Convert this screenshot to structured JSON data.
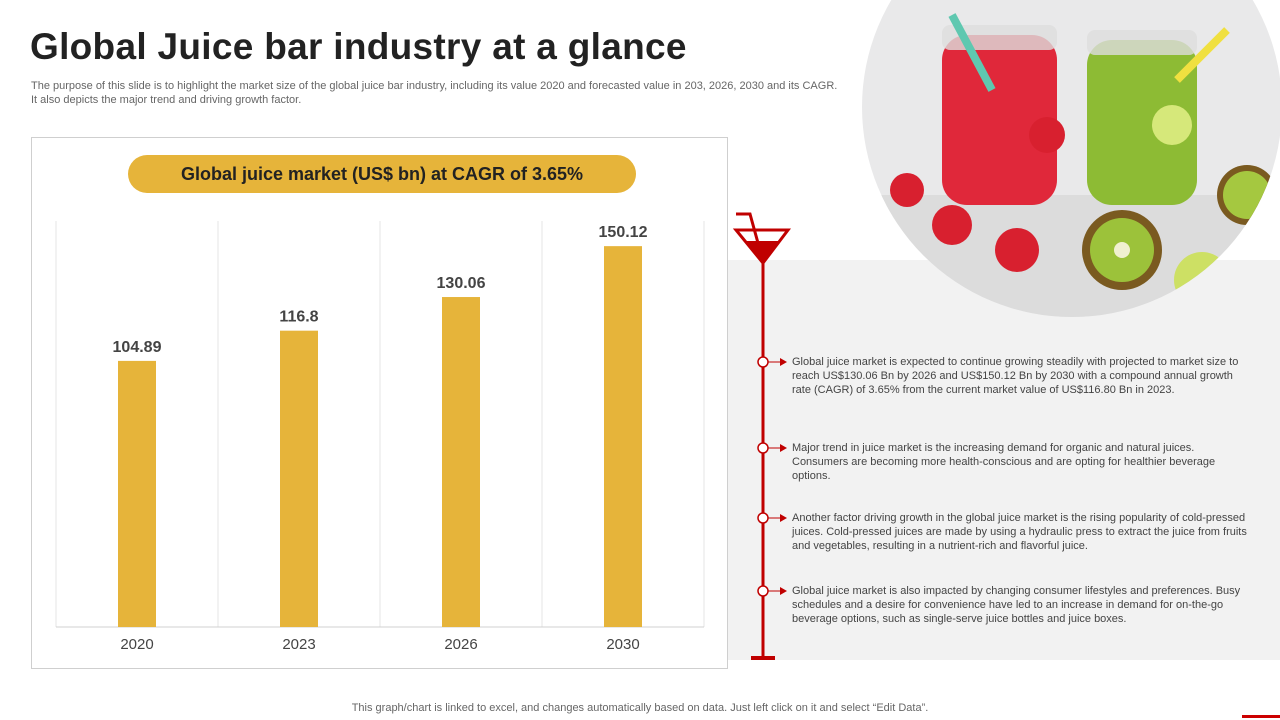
{
  "title": "Global Juice bar industry at a glance",
  "subtitle": "The purpose of this slide is to highlight the market size of the global juice bar industry, including its value 2020 and forecasted value in 203, 2026, 2030 and its CAGR. It also depicts the major trend and driving growth factor.",
  "chart_data": {
    "type": "bar",
    "title": "Global juice market (US$ bn) at CAGR of 3.65%",
    "categories": [
      "2020",
      "2023",
      "2026",
      "2030"
    ],
    "values": [
      104.89,
      116.8,
      130.06,
      150.12
    ],
    "data_labels": [
      "104.89",
      "116.8",
      "130.06",
      "150.12"
    ],
    "ylim": [
      0,
      160
    ],
    "grid": "vertical",
    "bar_color": "#e6b43a"
  },
  "timeline": {
    "accent": "#c00000",
    "items": [
      "Global juice market is expected to continue growing steadily with projected to market size to reach US$130.06 Bn by 2026 and US$150.12 Bn by 2030 with a compound annual growth rate (CAGR) of 3.65% from the current market value of US$116.80 Bn in 2023.",
      "Major trend in juice market is the increasing demand for organic and natural juices. Consumers are becoming more health-conscious and are opting for healthier beverage options.",
      "Another factor driving growth in the global juice market is the rising popularity of cold-pressed juices. Cold-pressed juices are made by using a hydraulic press to extract the juice from fruits and vegetables, resulting in a nutrient-rich and flavorful juice.",
      "Global juice market is also impacted by changing consumer lifestyles and preferences. Busy schedules and a desire for convenience have led to an increase in demand for on-the-go beverage options, such as single-serve juice bottles and juice boxes."
    ]
  },
  "footer": "This graph/chart is linked to excel, and changes automatically based on data. Just left click on it and select “Edit Data”."
}
